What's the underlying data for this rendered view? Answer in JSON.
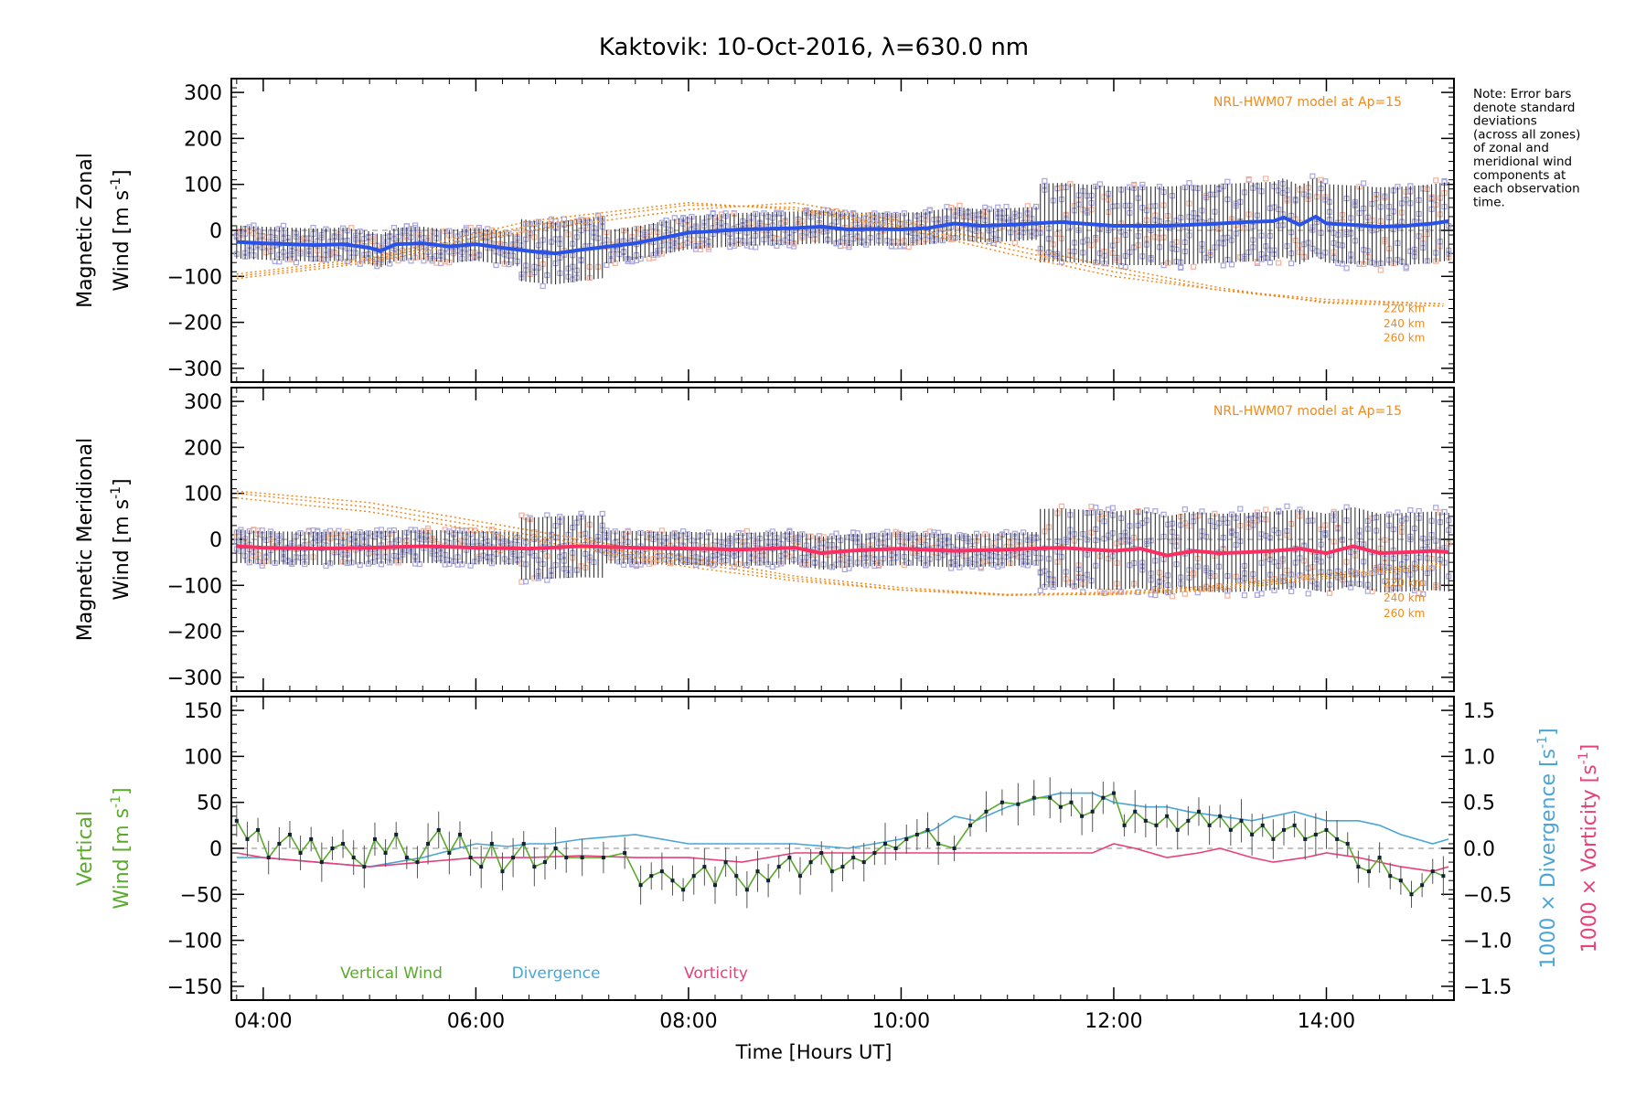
{
  "title": "Kaktovik: 10-Oct-2016, λ=630.0 nm",
  "note": [
    "Note: Error bars",
    "denote standard",
    "deviations",
    "(across all zones)",
    "of zonal and",
    "meridional wind",
    "components at",
    "each observation",
    "time."
  ],
  "xlabel": "Time [Hours UT]",
  "colors": {
    "zonal": "#2a52e8",
    "meridional": "#ff2e62",
    "model": "#f08a1c",
    "zone": "#a8a6e0",
    "vertical": "#5aaa2c",
    "divergence": "#4aa6d6",
    "vorticity": "#e8407a",
    "axis": "#000000",
    "zero_line": "#888888"
  },
  "chart_data": [
    {
      "type": "line",
      "panel": "zonal",
      "ylabel": [
        "Magnetic Zonal",
        "Wind [m s",
        "-1",
        "]"
      ],
      "ylim": [
        -330,
        330
      ],
      "yticks": [
        -300,
        -200,
        -100,
        0,
        100,
        200,
        300
      ],
      "xlim": [
        3.7,
        15.2
      ],
      "xticks": [
        4,
        6,
        8,
        10,
        12,
        14
      ],
      "xticklabels": [
        "04:00",
        "06:00",
        "08:00",
        "10:00",
        "12:00",
        "14:00"
      ],
      "model_label": "NRL-HWM07 model at Ap=15",
      "model_altitudes": [
        "220 km",
        "240 km",
        "260 km"
      ],
      "mean_wind": {
        "x": [
          3.75,
          4.0,
          4.25,
          4.5,
          4.75,
          5.0,
          5.1,
          5.25,
          5.5,
          5.75,
          6.0,
          6.25,
          6.5,
          6.75,
          7.0,
          7.5,
          8.0,
          8.5,
          9.0,
          9.25,
          9.5,
          9.75,
          10.0,
          10.25,
          10.5,
          10.75,
          11.0,
          11.5,
          12.0,
          12.5,
          13.0,
          13.25,
          13.5,
          13.6,
          13.75,
          13.9,
          14.0,
          14.25,
          14.5,
          14.75,
          15.0,
          15.15
        ],
        "y": [
          -25,
          -28,
          -30,
          -32,
          -30,
          -38,
          -45,
          -30,
          -28,
          -35,
          -30,
          -38,
          -45,
          -50,
          -42,
          -28,
          -5,
          2,
          5,
          8,
          2,
          3,
          2,
          5,
          15,
          10,
          12,
          18,
          10,
          10,
          15,
          18,
          20,
          28,
          12,
          30,
          15,
          12,
          8,
          10,
          15,
          20
        ]
      },
      "model_curves": [
        {
          "name": "220 km",
          "x": [
            3.75,
            5.0,
            6.5,
            8.0,
            9.0,
            10.0,
            11.0,
            12.0,
            13.0,
            14.0,
            15.15
          ],
          "y": [
            -95,
            -60,
            20,
            60,
            45,
            5,
            -50,
            -100,
            -130,
            -150,
            -160
          ]
        },
        {
          "name": "240 km",
          "x": [
            3.75,
            5.0,
            6.5,
            8.0,
            9.0,
            10.0,
            11.0,
            12.0,
            13.0,
            14.0,
            15.15
          ],
          "y": [
            -100,
            -65,
            10,
            55,
            50,
            10,
            -40,
            -90,
            -130,
            -155,
            -160
          ]
        },
        {
          "name": "260 km",
          "x": [
            3.75,
            5.0,
            6.5,
            8.0,
            9.0,
            10.0,
            11.0,
            12.0,
            13.0,
            14.0,
            15.15
          ],
          "y": [
            -105,
            -70,
            0,
            45,
            60,
            20,
            -30,
            -80,
            -125,
            -158,
            -165
          ]
        }
      ]
    },
    {
      "type": "line",
      "panel": "meridional",
      "ylabel": [
        "Magnetic Meridional",
        "Wind [m s",
        "-1",
        "]"
      ],
      "ylim": [
        -330,
        330
      ],
      "yticks": [
        -300,
        -200,
        -100,
        0,
        100,
        200,
        300
      ],
      "xlim": [
        3.7,
        15.2
      ],
      "xticks": [
        4,
        6,
        8,
        10,
        12,
        14
      ],
      "model_label": "NRL-HWM07 model at Ap=15",
      "model_altitudes": [
        "220 km",
        "240 km",
        "260 km"
      ],
      "mean_wind": {
        "x": [
          3.75,
          4.0,
          4.5,
          5.0,
          5.5,
          6.0,
          6.5,
          7.0,
          7.5,
          8.0,
          8.5,
          9.0,
          9.25,
          9.5,
          9.75,
          10.0,
          10.5,
          11.0,
          11.5,
          12.0,
          12.25,
          12.5,
          12.75,
          13.0,
          13.25,
          13.5,
          13.75,
          14.0,
          14.25,
          14.5,
          14.75,
          15.0,
          15.15
        ],
        "y": [
          -15,
          -18,
          -20,
          -18,
          -15,
          -18,
          -20,
          -15,
          -18,
          -20,
          -22,
          -18,
          -30,
          -25,
          -22,
          -20,
          -25,
          -22,
          -18,
          -25,
          -20,
          -35,
          -25,
          -30,
          -28,
          -25,
          -20,
          -30,
          -15,
          -30,
          -28,
          -25,
          -28
        ]
      },
      "model_curves": [
        {
          "name": "220 km",
          "x": [
            3.75,
            5.0,
            6.5,
            8.0,
            9.0,
            10.0,
            11.0,
            12.0,
            13.0,
            14.0,
            15.15
          ],
          "y": [
            90,
            60,
            0,
            -60,
            -90,
            -110,
            -120,
            -115,
            -100,
            -75,
            -50
          ]
        },
        {
          "name": "240 km",
          "x": [
            3.75,
            5.0,
            6.5,
            8.0,
            9.0,
            10.0,
            11.0,
            12.0,
            13.0,
            14.0,
            15.15
          ],
          "y": [
            100,
            70,
            10,
            -50,
            -85,
            -110,
            -122,
            -118,
            -105,
            -80,
            -55
          ]
        },
        {
          "name": "260 km",
          "x": [
            3.75,
            5.0,
            6.5,
            8.0,
            9.0,
            10.0,
            11.0,
            12.0,
            13.0,
            14.0,
            15.15
          ],
          "y": [
            105,
            80,
            20,
            -40,
            -80,
            -105,
            -120,
            -120,
            -110,
            -85,
            -60
          ]
        }
      ]
    },
    {
      "type": "line",
      "panel": "vertical",
      "ylabel_left": [
        "Vertical",
        "Wind [m s",
        "-1",
        "]"
      ],
      "ylabel_right_divergence": [
        "1000 × Divergence [s",
        "-1",
        "]"
      ],
      "ylabel_right_vorticity": [
        "1000 × Vorticity [s",
        "-1",
        "]"
      ],
      "ylim": [
        -165,
        165
      ],
      "yticks": [
        -150,
        -100,
        -50,
        0,
        50,
        100,
        150
      ],
      "y2lim": [
        -1.65,
        1.65
      ],
      "y2ticks": [
        -1.5,
        -1.0,
        -0.5,
        0.0,
        0.5,
        1.0,
        1.5
      ],
      "y2ticklabels": [
        "−1.5",
        "−1.0",
        "−0.5",
        "0.0",
        "0.5",
        "1.0",
        "1.5"
      ],
      "xlim": [
        3.7,
        15.2
      ],
      "xticks": [
        4,
        6,
        8,
        10,
        12,
        14
      ],
      "legend": [
        "Vertical Wind",
        "Divergence",
        "Vorticity"
      ],
      "vertical_wind": {
        "x": [
          3.75,
          3.85,
          3.95,
          4.05,
          4.15,
          4.25,
          4.35,
          4.45,
          4.55,
          4.65,
          4.75,
          4.85,
          4.95,
          5.05,
          5.15,
          5.25,
          5.35,
          5.45,
          5.55,
          5.65,
          5.75,
          5.85,
          5.95,
          6.05,
          6.15,
          6.25,
          6.35,
          6.45,
          6.55,
          6.65,
          6.75,
          6.85,
          7.0,
          7.2,
          7.4,
          7.55,
          7.65,
          7.75,
          7.85,
          7.95,
          8.05,
          8.15,
          8.25,
          8.35,
          8.45,
          8.55,
          8.65,
          8.75,
          8.85,
          8.95,
          9.05,
          9.15,
          9.25,
          9.35,
          9.45,
          9.55,
          9.65,
          9.75,
          9.85,
          9.95,
          10.05,
          10.15,
          10.25,
          10.35,
          10.5,
          10.65,
          10.8,
          10.95,
          11.1,
          11.25,
          11.4,
          11.5,
          11.6,
          11.7,
          11.8,
          11.9,
          12.0,
          12.1,
          12.2,
          12.3,
          12.4,
          12.5,
          12.6,
          12.7,
          12.8,
          12.9,
          13.0,
          13.1,
          13.2,
          13.3,
          13.4,
          13.5,
          13.6,
          13.7,
          13.8,
          13.9,
          14.0,
          14.1,
          14.2,
          14.3,
          14.4,
          14.5,
          14.6,
          14.7,
          14.8,
          14.9,
          15.0,
          15.1
        ],
        "y": [
          30,
          10,
          20,
          -10,
          5,
          15,
          -5,
          10,
          -15,
          0,
          5,
          -10,
          -20,
          10,
          -5,
          15,
          -10,
          -15,
          5,
          20,
          -5,
          15,
          -10,
          -20,
          5,
          -25,
          -10,
          5,
          -20,
          -15,
          0,
          -10,
          -10,
          -10,
          -5,
          -40,
          -30,
          -25,
          -35,
          -45,
          -30,
          -20,
          -40,
          -15,
          -30,
          -45,
          -25,
          -35,
          -20,
          -10,
          -30,
          -15,
          -5,
          -25,
          -20,
          -10,
          -15,
          -5,
          5,
          0,
          10,
          15,
          20,
          5,
          0,
          25,
          40,
          50,
          48,
          55,
          55,
          45,
          50,
          35,
          40,
          55,
          60,
          25,
          40,
          30,
          25,
          35,
          20,
          30,
          40,
          25,
          35,
          20,
          30,
          15,
          25,
          10,
          20,
          25,
          10,
          15,
          20,
          10,
          5,
          -20,
          -25,
          -10,
          -30,
          -35,
          -50,
          -40,
          -25,
          -30
        ]
      },
      "divergence": {
        "x": [
          3.75,
          4.0,
          4.5,
          5.0,
          5.5,
          6.0,
          6.3,
          6.5,
          6.7,
          7.0,
          7.5,
          8.0,
          8.5,
          9.0,
          9.5,
          10.0,
          10.3,
          10.5,
          10.7,
          11.0,
          11.3,
          11.5,
          11.8,
          12.0,
          12.3,
          12.5,
          12.7,
          13.0,
          13.3,
          13.5,
          13.7,
          14.0,
          14.3,
          14.5,
          14.7,
          15.0,
          15.15
        ],
        "y": [
          -0.1,
          -0.1,
          -0.15,
          -0.2,
          -0.1,
          0.05,
          0.02,
          0.05,
          0.05,
          0.1,
          0.15,
          0.05,
          0.05,
          0.05,
          0.0,
          0.1,
          0.2,
          0.35,
          0.3,
          0.45,
          0.55,
          0.6,
          0.6,
          0.5,
          0.45,
          0.45,
          0.4,
          0.35,
          0.3,
          0.35,
          0.4,
          0.3,
          0.3,
          0.25,
          0.15,
          0.05,
          0.1
        ]
      },
      "vorticity": {
        "x": [
          3.75,
          4.0,
          4.5,
          5.0,
          5.5,
          6.0,
          6.5,
          7.0,
          7.5,
          8.0,
          8.5,
          9.0,
          9.5,
          10.0,
          10.5,
          11.0,
          11.5,
          11.8,
          12.0,
          12.2,
          12.5,
          12.8,
          13.0,
          13.3,
          13.5,
          13.8,
          14.0,
          14.3,
          14.5,
          14.7,
          15.0,
          15.15
        ],
        "y": [
          -0.05,
          -0.1,
          -0.15,
          -0.2,
          -0.15,
          -0.1,
          -0.1,
          -0.08,
          -0.1,
          -0.1,
          -0.15,
          -0.05,
          -0.05,
          -0.05,
          -0.05,
          -0.05,
          -0.05,
          -0.05,
          0.05,
          0.0,
          -0.1,
          -0.05,
          0.0,
          -0.1,
          -0.15,
          -0.1,
          -0.05,
          -0.1,
          -0.15,
          -0.2,
          -0.25,
          -0.2
        ]
      }
    }
  ]
}
